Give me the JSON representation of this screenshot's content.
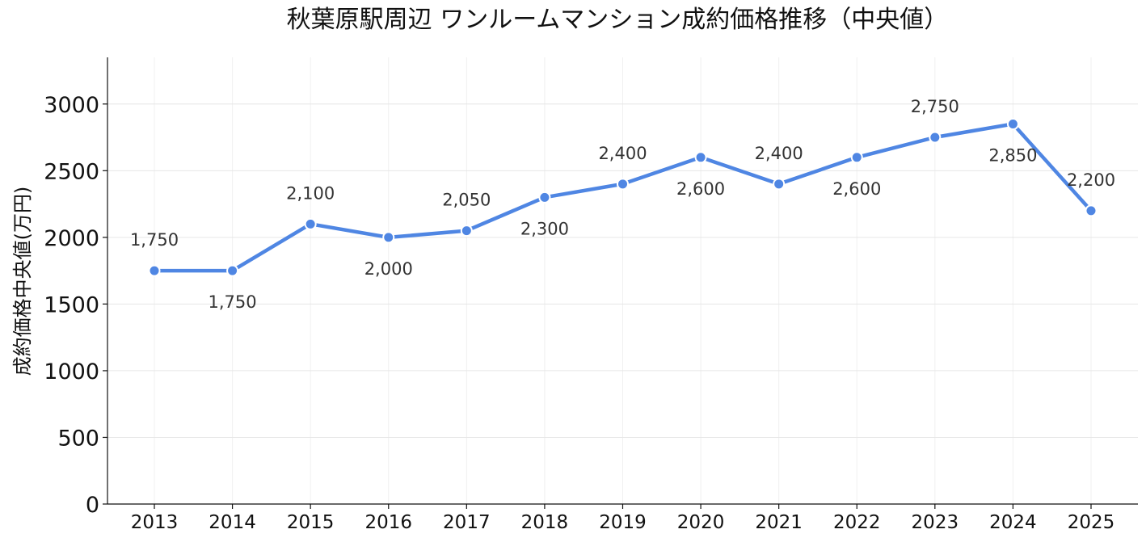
{
  "chart_data": {
    "type": "line",
    "title": "秋葉原駅周辺 ワンルームマンション成約価格推移（中央値）",
    "xlabel": "",
    "ylabel": "成約価格中央値(万円)",
    "categories": [
      "2013",
      "2014",
      "2015",
      "2016",
      "2017",
      "2018",
      "2019",
      "2020",
      "2021",
      "2022",
      "2023",
      "2024",
      "2025"
    ],
    "series": [
      {
        "values": [
          1750,
          1750,
          2100,
          2000,
          2050,
          2300,
          2400,
          2600,
          2400,
          2600,
          2750,
          2850,
          2200
        ],
        "data_labels": [
          "1,750",
          "1,750",
          "2,100",
          "2,000",
          "2,050",
          "2,300",
          "2,400",
          "2,600",
          "2,400",
          "2,600",
          "2,750",
          "2,850",
          "2,200"
        ]
      }
    ],
    "yticks": [
      "0",
      "500",
      "1000",
      "1500",
      "2000",
      "2500",
      "3000"
    ],
    "ylim": [
      0,
      3350
    ],
    "grid": true,
    "line_color": "#4f86e3"
  }
}
